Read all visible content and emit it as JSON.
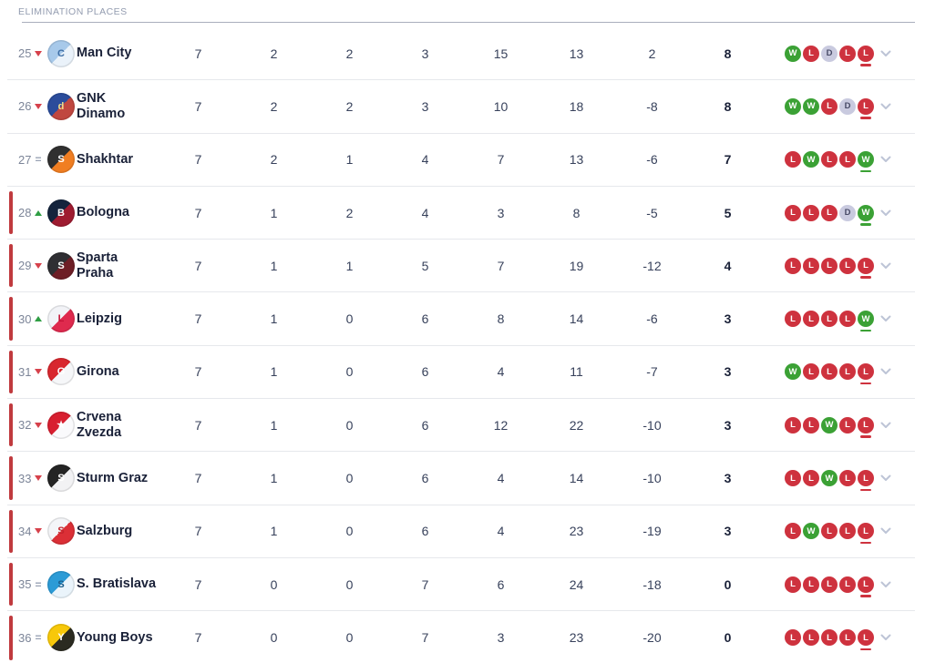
{
  "section": {
    "title": "ELIMINATION PLACES"
  },
  "colors": {
    "win": "#3BA135",
    "loss": "#CE323E",
    "draw": "#C9CADF",
    "draw_text": "#474A66",
    "zone_bar": "#C03A3E",
    "up": "#2F9E44",
    "down": "#D6414B",
    "same": "#9AA3B5",
    "chevron": "#BDC4D6",
    "team_name_text": "#1A2138",
    "stat_text": "#37415B",
    "position_text": "#7C8598",
    "section_title_text": "#939CB0",
    "row_divider": "#E6E8EC"
  },
  "table": {
    "rows": [
      {
        "pos": "25",
        "movement": "down",
        "team": "Man City",
        "badge": {
          "icon": "man-city-crest-icon",
          "c1": "#A7C9EA",
          "c2": "#EAF2FA",
          "letter": "C",
          "lc": "#3E6EA5"
        },
        "in_red_zone": false,
        "stats": [
          "7",
          "2",
          "2",
          "3",
          "15",
          "13",
          "2",
          "8"
        ],
        "form": [
          "W",
          "L",
          "D",
          "L",
          "L"
        ]
      },
      {
        "pos": "26",
        "movement": "down",
        "team": "GNK Dinamo",
        "badge": {
          "icon": "gnk-dinamo-crest-icon",
          "c1": "#2B4C9B",
          "c2": "#C04740",
          "letter": "d",
          "lc": "#F3DE8A"
        },
        "in_red_zone": false,
        "stats": [
          "7",
          "2",
          "2",
          "3",
          "10",
          "18",
          "-8",
          "8"
        ],
        "form": [
          "W",
          "W",
          "L",
          "D",
          "L"
        ]
      },
      {
        "pos": "27",
        "movement": "same",
        "team": "Shakhtar",
        "badge": {
          "icon": "shakhtar-crest-icon",
          "c1": "#303030",
          "c2": "#F07E22",
          "letter": "S",
          "lc": "#FFFFFF"
        },
        "in_red_zone": false,
        "stats": [
          "7",
          "2",
          "1",
          "4",
          "7",
          "13",
          "-6",
          "7"
        ],
        "form": [
          "L",
          "W",
          "L",
          "L",
          "W"
        ]
      },
      {
        "pos": "28",
        "movement": "up",
        "team": "Bologna",
        "badge": {
          "icon": "bologna-crest-icon",
          "c1": "#14243D",
          "c2": "#9E1B30",
          "letter": "B",
          "lc": "#FFFFFF"
        },
        "in_red_zone": true,
        "stats": [
          "7",
          "1",
          "2",
          "4",
          "3",
          "8",
          "-5",
          "5"
        ],
        "form": [
          "L",
          "L",
          "L",
          "D",
          "W"
        ]
      },
      {
        "pos": "29",
        "movement": "down",
        "team": "Sparta Praha",
        "badge": {
          "icon": "sparta-praha-crest-icon",
          "c1": "#2F2F33",
          "c2": "#6E1E26",
          "letter": "S",
          "lc": "#FFFFFF"
        },
        "in_red_zone": true,
        "stats": [
          "7",
          "1",
          "1",
          "5",
          "7",
          "19",
          "-12",
          "4"
        ],
        "form": [
          "L",
          "L",
          "L",
          "L",
          "L"
        ]
      },
      {
        "pos": "30",
        "movement": "up",
        "team": "Leipzig",
        "badge": {
          "icon": "leipzig-crest-icon",
          "c1": "#F2F3F7",
          "c2": "#DF2A4E",
          "letter": "L",
          "lc": "#C41236"
        },
        "in_red_zone": true,
        "stats": [
          "7",
          "1",
          "0",
          "6",
          "8",
          "14",
          "-6",
          "3"
        ],
        "form": [
          "L",
          "L",
          "L",
          "L",
          "W"
        ]
      },
      {
        "pos": "31",
        "movement": "down",
        "team": "Girona",
        "badge": {
          "icon": "girona-crest-icon",
          "c1": "#D8272E",
          "c2": "#F6F7F9",
          "letter": "G",
          "lc": "#FFFFFF"
        },
        "in_red_zone": true,
        "stats": [
          "7",
          "1",
          "0",
          "6",
          "4",
          "11",
          "-7",
          "3"
        ],
        "form": [
          "W",
          "L",
          "L",
          "L",
          "L"
        ]
      },
      {
        "pos": "32",
        "movement": "down",
        "team": "Crvena Zvezda",
        "badge": {
          "icon": "crvena-zvezda-crest-icon",
          "c1": "#D81F30",
          "c2": "#FAFAFC",
          "letter": "★",
          "lc": "#FFFFFF"
        },
        "in_red_zone": true,
        "stats": [
          "7",
          "1",
          "0",
          "6",
          "12",
          "22",
          "-10",
          "3"
        ],
        "form": [
          "L",
          "L",
          "W",
          "L",
          "L"
        ]
      },
      {
        "pos": "33",
        "movement": "down",
        "team": "Sturm Graz",
        "badge": {
          "icon": "sturm-graz-crest-icon",
          "c1": "#242424",
          "c2": "#F2F2F4",
          "letter": "S",
          "lc": "#FFFFFF"
        },
        "in_red_zone": true,
        "stats": [
          "7",
          "1",
          "0",
          "6",
          "4",
          "14",
          "-10",
          "3"
        ],
        "form": [
          "L",
          "L",
          "W",
          "L",
          "L"
        ]
      },
      {
        "pos": "34",
        "movement": "down",
        "team": "Salzburg",
        "badge": {
          "icon": "salzburg-crest-icon",
          "c1": "#F4F5F8",
          "c2": "#DB2F36",
          "letter": "S",
          "lc": "#C3232B"
        },
        "in_red_zone": true,
        "stats": [
          "7",
          "1",
          "0",
          "6",
          "4",
          "23",
          "-19",
          "3"
        ],
        "form": [
          "L",
          "W",
          "L",
          "L",
          "L"
        ]
      },
      {
        "pos": "35",
        "movement": "same",
        "team": "S. Bratislava",
        "badge": {
          "icon": "slovan-bratislava-crest-icon",
          "c1": "#2C9BD6",
          "c2": "#EAF4FB",
          "letter": "S",
          "lc": "#1B5E8C"
        },
        "in_red_zone": true,
        "stats": [
          "7",
          "0",
          "0",
          "7",
          "6",
          "24",
          "-18",
          "0"
        ],
        "form": [
          "L",
          "L",
          "L",
          "L",
          "L"
        ]
      },
      {
        "pos": "36",
        "movement": "same",
        "team": "Young Boys",
        "badge": {
          "icon": "young-boys-crest-icon",
          "c1": "#F7C80A",
          "c2": "#2B2B21",
          "letter": "Y",
          "lc": "#FFFFFF"
        },
        "in_red_zone": true,
        "stats": [
          "7",
          "0",
          "0",
          "7",
          "3",
          "23",
          "-20",
          "0"
        ],
        "form": [
          "L",
          "L",
          "L",
          "L",
          "L"
        ]
      }
    ]
  }
}
